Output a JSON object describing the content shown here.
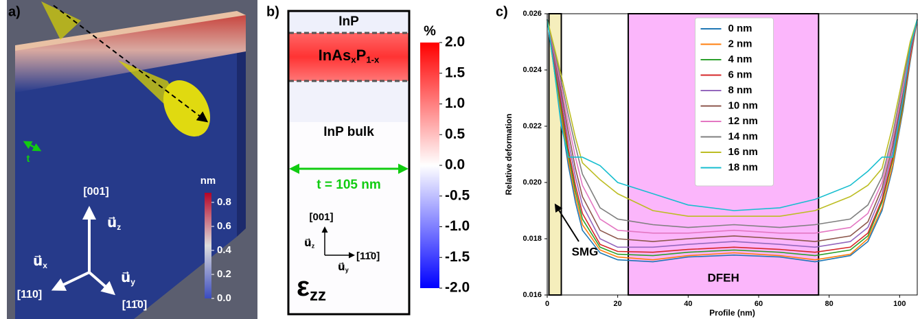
{
  "panel_a": {
    "label": "a)",
    "thickness_label": "t",
    "axes": {
      "z_dir": "[001]",
      "x_dir": "[110]",
      "y_dir": "[11̄0]",
      "u_z": {
        "base": "u⃗",
        "sub": "z"
      },
      "u_x": {
        "base": "u⃗",
        "sub": "x"
      },
      "u_y": {
        "base": "u⃗",
        "sub": "y"
      }
    },
    "colorbar": {
      "title": "nm",
      "lim": [
        0,
        0.88
      ],
      "ticks": [
        {
          "value": 0,
          "label": "0.0"
        },
        0.2,
        0.4,
        0.6,
        0.8
      ]
    }
  },
  "panel_b": {
    "label": "b)",
    "top_layer": "InP",
    "quantum_well_parts": [
      "InAs",
      "x",
      "P",
      "1-x"
    ],
    "bulk": "InP bulk",
    "thickness": "t = 105 nm",
    "axes": {
      "z_dir": "[001]",
      "y_dir": "[11̄0]",
      "u_z": {
        "base": "u⃗",
        "sub": "z"
      },
      "u_y": {
        "base": "u⃗",
        "sub": "y"
      }
    },
    "strain_symbol": {
      "base": "ε",
      "sub": "zz"
    },
    "colorbar": {
      "title": "%",
      "lim": [
        -2,
        2
      ],
      "ticks": [
        {
          "value": 2,
          "label": "2.0"
        },
        1.5,
        {
          "value": 1,
          "label": "1.0"
        },
        0.5,
        {
          "value": 0,
          "label": "0.0"
        },
        -0.5,
        {
          "value": -1,
          "label": "-1.0"
        },
        -1.5,
        {
          "value": -2,
          "label": "-2.0"
        }
      ]
    }
  },
  "chart_data": {
    "type": "line",
    "label": "c)",
    "xlabel": "Profile (nm)",
    "ylabel": "Relative deformation",
    "x": [
      0,
      2,
      4,
      6,
      8,
      10,
      15,
      20,
      30,
      40,
      53,
      66,
      76,
      86,
      91,
      95,
      98,
      101,
      103,
      105
    ],
    "xlim": [
      0,
      105
    ],
    "xticks": [
      0,
      20,
      40,
      60,
      80,
      100
    ],
    "ylim": [
      0.016,
      0.026
    ],
    "yticks": [
      0.016,
      0.018,
      {
        "value": 0.02,
        "label": "0.020"
      },
      0.022,
      0.024,
      0.026
    ],
    "legend": "upper center",
    "regions": [
      {
        "label": "SMG",
        "x": [
          0.5,
          4
        ],
        "color": "#f5eebc"
      },
      {
        "label": "DFEH",
        "x": [
          23,
          77
        ],
        "color": "#fbb6fb"
      }
    ],
    "series": [
      {
        "name": "0 nm",
        "color": "#1f77b4",
        "values": [
          0.0258,
          0.024,
          0.0222,
          0.0206,
          0.0193,
          0.0183,
          0.0175,
          0.01725,
          0.01718,
          0.01735,
          0.01742,
          0.01735,
          0.01718,
          0.0174,
          0.0179,
          0.019,
          0.0205,
          0.0226,
          0.0243,
          0.0258
        ]
      },
      {
        "name": "2 nm",
        "color": "#ff7f0e",
        "values": [
          0.0258,
          0.0241,
          0.0224,
          0.0208,
          0.0195,
          0.0185,
          0.0176,
          0.01735,
          0.01725,
          0.0174,
          0.0175,
          0.0174,
          0.01725,
          0.01745,
          0.018,
          0.0191,
          0.0206,
          0.0227,
          0.0244,
          0.0258
        ]
      },
      {
        "name": "4 nm",
        "color": "#2ca02c",
        "values": [
          0.0258,
          0.0242,
          0.0226,
          0.021,
          0.0197,
          0.0187,
          0.0177,
          0.01745,
          0.0174,
          0.01752,
          0.0176,
          0.01752,
          0.0174,
          0.0176,
          0.0181,
          0.0193,
          0.0208,
          0.0228,
          0.0245,
          0.0258
        ]
      },
      {
        "name": "6 nm",
        "color": "#d62728",
        "values": [
          0.0258,
          0.0243,
          0.0228,
          0.0212,
          0.0199,
          0.0189,
          0.0178,
          0.01755,
          0.01752,
          0.01762,
          0.0177,
          0.01762,
          0.01752,
          0.0177,
          0.0182,
          0.0194,
          0.0209,
          0.0229,
          0.0245,
          0.0258
        ]
      },
      {
        "name": "8 nm",
        "color": "#9467bd",
        "values": [
          0.0258,
          0.0244,
          0.023,
          0.0215,
          0.0202,
          0.0192,
          0.018,
          0.0177,
          0.0177,
          0.0178,
          0.0179,
          0.0178,
          0.0177,
          0.0179,
          0.0184,
          0.0196,
          0.0211,
          0.0231,
          0.0246,
          0.0258
        ]
      },
      {
        "name": "10 nm",
        "color": "#8c564b",
        "values": [
          0.0258,
          0.0245,
          0.0232,
          0.0218,
          0.0205,
          0.0195,
          0.0183,
          0.018,
          0.0179,
          0.018,
          0.0181,
          0.018,
          0.0179,
          0.0181,
          0.0186,
          0.0198,
          0.0213,
          0.0232,
          0.0247,
          0.0258
        ]
      },
      {
        "name": "12 nm",
        "color": "#e377c2",
        "values": [
          0.0258,
          0.0246,
          0.0234,
          0.0221,
          0.0209,
          0.0199,
          0.0187,
          0.0183,
          0.0182,
          0.0182,
          0.0183,
          0.0182,
          0.0182,
          0.0184,
          0.0189,
          0.02,
          0.0215,
          0.0234,
          0.0248,
          0.0258
        ]
      },
      {
        "name": "14 nm",
        "color": "#7f7f7f",
        "values": [
          0.0258,
          0.0247,
          0.0236,
          0.0224,
          0.0213,
          0.0203,
          0.0191,
          0.0187,
          0.0185,
          0.0184,
          0.0185,
          0.0184,
          0.0185,
          0.0187,
          0.0192,
          0.0202,
          0.0217,
          0.0236,
          0.0249,
          0.0258
        ]
      },
      {
        "name": "16 nm",
        "color": "#bcbd22",
        "values": [
          0.0258,
          0.0248,
          0.0238,
          0.0227,
          0.0216,
          0.0207,
          0.0201,
          0.0196,
          0.019,
          0.0188,
          0.0188,
          0.0188,
          0.019,
          0.0195,
          0.0199,
          0.0205,
          0.022,
          0.0238,
          0.025,
          0.0258
        ]
      },
      {
        "name": "18 nm",
        "color": "#17becf",
        "values": [
          0.0258,
          0.024,
          0.022,
          0.0209,
          0.0209,
          0.0209,
          0.0206,
          0.02,
          0.0196,
          0.0192,
          0.019,
          0.0191,
          0.0194,
          0.0199,
          0.0204,
          0.0209,
          0.0209,
          0.023,
          0.0248,
          0.0258
        ]
      }
    ]
  }
}
